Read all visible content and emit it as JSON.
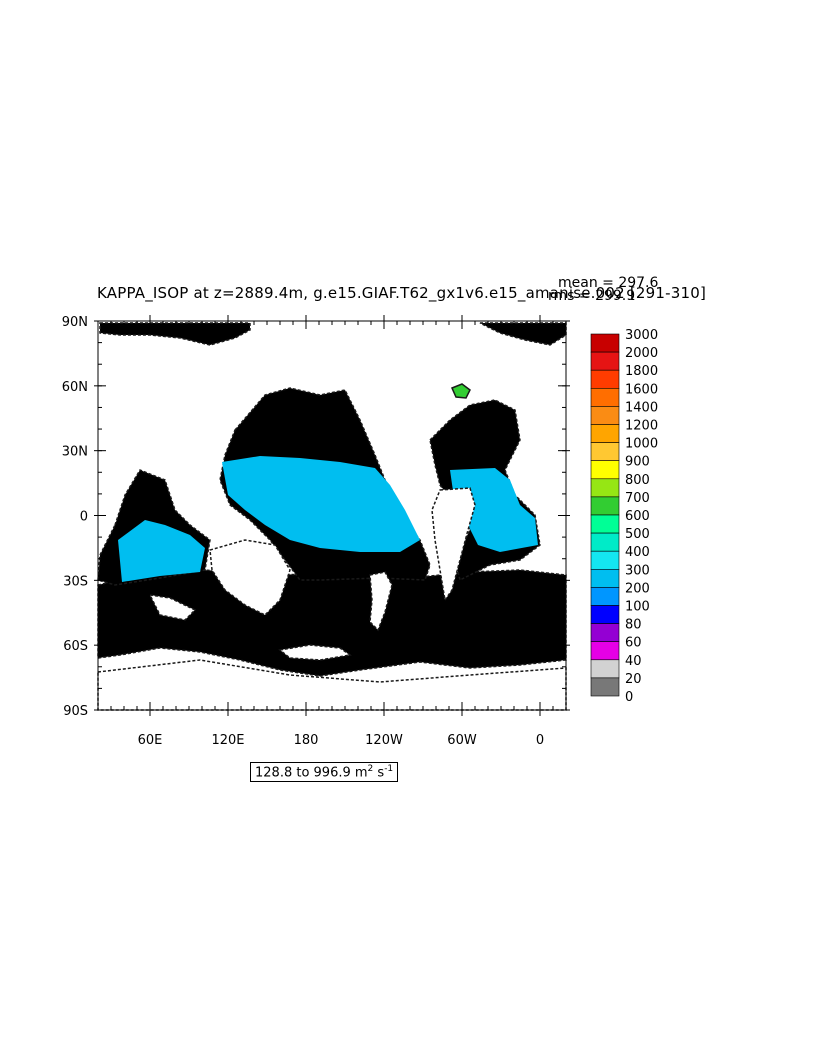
{
  "title": "KAPPA_ISOP at z=2889.4m, g.e15.GIAF.T62_gx1v6.e15_amanise.002 [291-310]",
  "stats": {
    "mean_label": "mean = 297.6",
    "rms_label": "rms = 299.9"
  },
  "range": {
    "prefix": "128.8 to 996.9 m",
    "exp1": "2",
    "mid": " s",
    "exp2": "-1"
  },
  "axes": {
    "lat_ticks": [
      "90N",
      "60N",
      "30N",
      "0",
      "30S",
      "60S",
      "90S"
    ],
    "lon_ticks": [
      "60E",
      "120E",
      "180",
      "120W",
      "60W",
      "0"
    ]
  },
  "colorbar": {
    "labels": [
      "3000",
      "2000",
      "1800",
      "1600",
      "1400",
      "1200",
      "1000",
      "900",
      "800",
      "700",
      "600",
      "500",
      "400",
      "300",
      "200",
      "100",
      "80",
      "60",
      "40",
      "20",
      "0"
    ],
    "colors": [
      "#c80000",
      "#e61414",
      "#ff3c00",
      "#ff6e00",
      "#fa8c14",
      "#ffa500",
      "#ffc832",
      "#ffff00",
      "#96e614",
      "#32cd32",
      "#00ff96",
      "#00ebc8",
      "#14e6f0",
      "#00bef0",
      "#0096ff",
      "#0000ff",
      "#9400d3",
      "#e600e6",
      "#d2d2d2",
      "#787878"
    ]
  },
  "map_colors": {
    "ocean_main": "#14e6f0",
    "ocean_tropics": "#00bef0",
    "high_patch": "#32cd32",
    "land": "#ffffff"
  }
}
